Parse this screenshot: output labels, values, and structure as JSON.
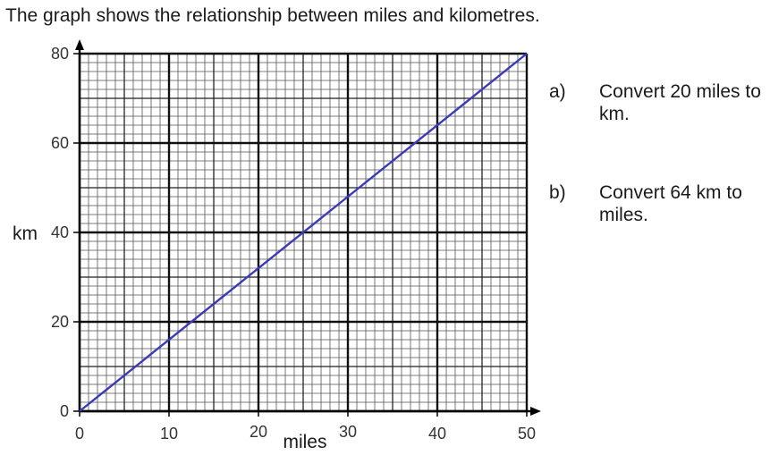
{
  "intro": "The graph shows the relationship between miles and kilometres.",
  "questions": [
    {
      "letter": "a)",
      "text": "Convert 20 miles to km."
    },
    {
      "letter": "b)",
      "text": "Convert 64 km to miles."
    }
  ],
  "chart_data": {
    "type": "line",
    "title": "",
    "xlabel": "miles",
    "ylabel": "km",
    "xlim": [
      0,
      50
    ],
    "ylim": [
      0,
      80
    ],
    "x_ticks": [
      0,
      10,
      20,
      30,
      40,
      50
    ],
    "y_ticks": [
      0,
      20,
      40,
      60,
      80
    ],
    "grid": true,
    "legend": "none",
    "series": [
      {
        "x": [
          0,
          50
        ],
        "y": [
          0,
          80
        ],
        "color": "#3a3ab8"
      }
    ]
  },
  "colors": {
    "line": "#3a3ab8",
    "grid_major": "#111111",
    "grid_minor": "#555555"
  }
}
